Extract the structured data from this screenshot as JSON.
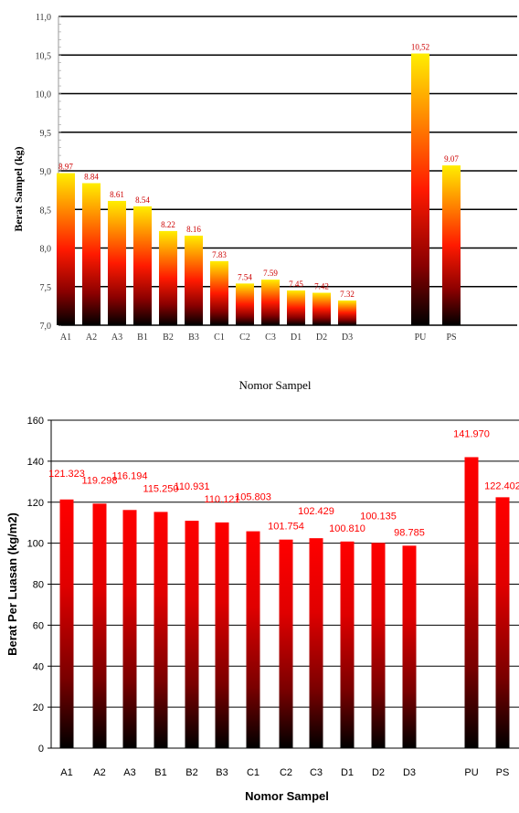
{
  "chart_data": [
    {
      "type": "bar",
      "title": "",
      "xlabel": "Nomor Sampel",
      "ylabel": "Berat Sampel (kg)",
      "ylim": [
        7.0,
        11.0
      ],
      "yticks": [
        "7,0",
        "7,5",
        "8,0",
        "8,5",
        "9,0",
        "9,5",
        "10,0",
        "10,5",
        "11,0"
      ],
      "grid": true,
      "categories": [
        "A1",
        "A2",
        "A3",
        "B1",
        "B2",
        "B3",
        "C1",
        "C2",
        "C3",
        "D1",
        "D2",
        "D3",
        "PU",
        "PS"
      ],
      "values": [
        8.97,
        8.84,
        8.61,
        8.54,
        8.22,
        8.16,
        7.83,
        7.54,
        7.59,
        7.45,
        7.42,
        7.32,
        10.52,
        9.07
      ],
      "value_labels": [
        "8.97",
        "8.84",
        "8.61",
        "8.54",
        "8.22",
        "8.16",
        "7.83",
        "7.54",
        "7.59",
        "7.45",
        "7.42",
        "7.32",
        "10,52",
        "9.07"
      ],
      "colors": {
        "top": "#ffee00",
        "mid": "#ff1a00",
        "bottom": "#000000",
        "label": "#cc0000"
      }
    },
    {
      "type": "bar",
      "title": "",
      "xlabel": "Nomor Sampel",
      "ylabel": "Berat Per Luasan (kg/m2)",
      "ylim": [
        0,
        160
      ],
      "yticks": [
        "0",
        "20",
        "40",
        "60",
        "80",
        "100",
        "120",
        "140",
        "160"
      ],
      "grid": true,
      "categories": [
        "A1",
        "A2",
        "A3",
        "B1",
        "B2",
        "B3",
        "C1",
        "C2",
        "C3",
        "D1",
        "D2",
        "D3",
        "PU",
        "PS"
      ],
      "values": [
        121.323,
        119.298,
        116.194,
        115.25,
        110.931,
        110.121,
        105.803,
        101.754,
        102.429,
        100.81,
        100.135,
        98.785,
        141.97,
        122.402
      ],
      "value_labels": [
        "121.323",
        "119.298",
        "116.194",
        "115.250",
        "110.931",
        "110.121",
        "105.803",
        "101.754",
        "102.429",
        "100.810",
        "100.135",
        "98.785",
        "141.970",
        "122.402"
      ],
      "colors": {
        "top": "#ff0000",
        "bottom": "#000000",
        "label": "#ff0000"
      }
    }
  ]
}
